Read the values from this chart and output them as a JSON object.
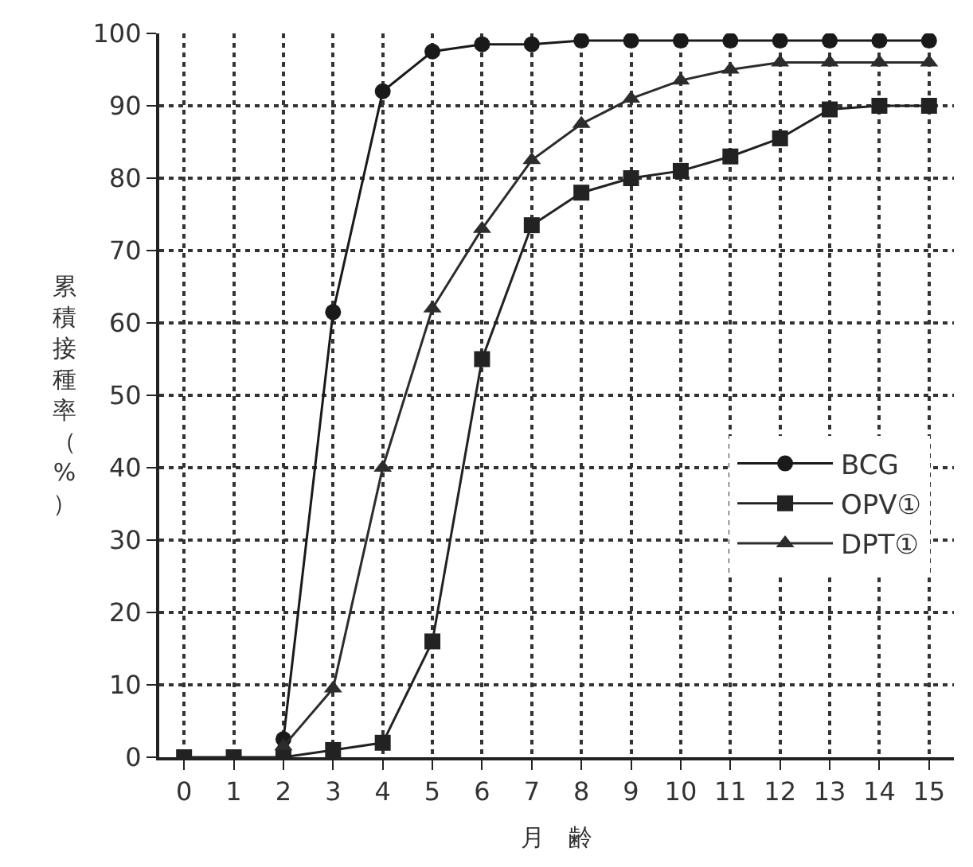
{
  "chart_data": {
    "type": "line",
    "xlabel": "月　齢",
    "ylabel": "累積接種率（%）",
    "x": [
      0,
      1,
      2,
      3,
      4,
      5,
      6,
      7,
      8,
      9,
      10,
      11,
      12,
      13,
      14,
      15
    ],
    "series": [
      {
        "name": "BCG",
        "color": "#1a1a1a",
        "marker": "circle",
        "values": [
          null,
          null,
          2.5,
          61.5,
          92,
          97.5,
          98.5,
          98.5,
          99,
          99,
          99,
          99,
          99,
          99,
          99,
          99
        ]
      },
      {
        "name": "OPV①",
        "color": "#222222",
        "marker": "square",
        "values": [
          0,
          0,
          0,
          1,
          2,
          16,
          55,
          73.5,
          78,
          80,
          81,
          83,
          85.5,
          89.5,
          90,
          90
        ]
      },
      {
        "name": "DPT①",
        "color": "#2c2c2c",
        "marker": "triangle",
        "values": [
          null,
          null,
          1.5,
          9.5,
          40,
          62,
          73,
          82.5,
          87.5,
          91,
          93.5,
          95,
          96,
          96,
          96,
          96
        ]
      }
    ],
    "xlim": [
      -0.5,
      15.5
    ],
    "xticks": [
      0,
      1,
      2,
      3,
      4,
      5,
      6,
      7,
      8,
      9,
      10,
      11,
      12,
      13,
      14,
      15
    ],
    "ylim": [
      0,
      100
    ],
    "yticks": [
      0,
      10,
      20,
      30,
      40,
      50,
      60,
      70,
      80,
      90,
      100
    ],
    "grid": true,
    "legend": "right",
    "line_style": "solid"
  }
}
